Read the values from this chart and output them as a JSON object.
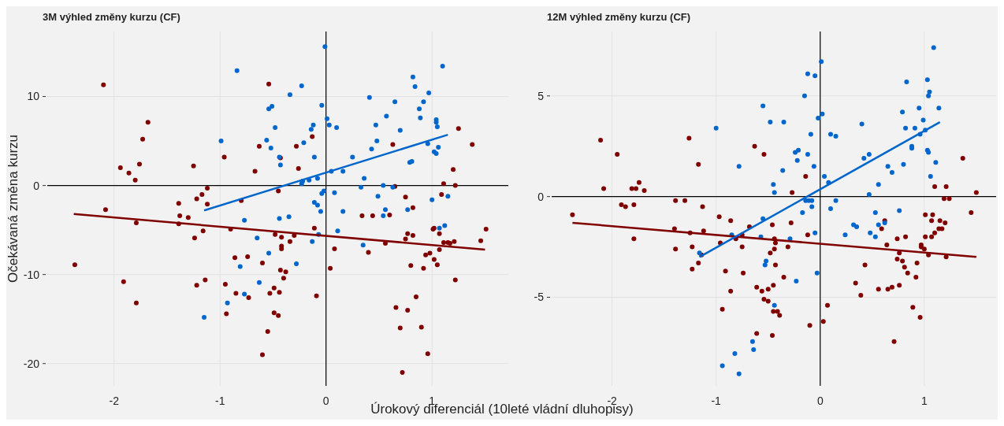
{
  "chart_data": [
    {
      "type": "scatter",
      "title": "3M výhled změny kurzu (CF)",
      "xlabel": "Úrokový diferenciál (10leté vládní dluhopisy)",
      "ylabel": "Očekávaná změna kurzu",
      "xlim": [
        -2.63,
        1.72
      ],
      "ylim": [
        -22.5,
        17.3
      ],
      "xticks": [
        -2,
        -1,
        0,
        1
      ],
      "yticks": [
        -20,
        -10,
        0,
        10
      ],
      "grid": true,
      "marker": "circle",
      "series": [
        {
          "type": "scatter",
          "color": "#800000",
          "x": [
            -2.1,
            -1.68,
            -1.73,
            -1.94,
            -1.86,
            -1.76,
            -1.8,
            -1.25,
            -0.96,
            -0.54,
            -0.63,
            -0.67,
            -0.43,
            -0.45,
            -2.08,
            -1.79,
            -1.12,
            -1.17,
            -1.22,
            -1.12,
            -1.39,
            -1.38,
            -1.3,
            -1.39,
            -1.24,
            -1.16,
            -0.9,
            -0.8,
            -0.86,
            -0.74,
            -0.6,
            -0.48,
            -0.42,
            -0.42,
            -0.43,
            -2.37,
            -1.91,
            -1.79,
            -1.22,
            -1.14,
            -0.95,
            -0.85,
            -0.73,
            -0.94,
            -0.53,
            -0.49,
            -0.44,
            -0.49,
            -0.45,
            -0.55,
            -0.6,
            -0.28,
            -0.26,
            -0.13,
            -0.11,
            -0.3,
            -0.34,
            -0.42,
            -0.38,
            -0.4,
            -0.09,
            0.08,
            0.04,
            0.34,
            0.44,
            0.6,
            0.4,
            0.56,
            0.63,
            0.65,
            0.75,
            0.82,
            0.77,
            0.82,
            0.75,
            0.8,
            0.92,
            0.94,
            0.98,
            1.02,
            1.05,
            1.07,
            1.01,
            1.02,
            1.07,
            1.11,
            1.15,
            1.17,
            1.21,
            1.09,
            1.11,
            1.22,
            1.2,
            1.25,
            1.38,
            1.46,
            1.51,
            1.22,
            0.85,
            0.66,
            0.77,
            0.7,
            0.9,
            0.96,
            0.72
          ],
          "values": [
            11.3,
            7.1,
            5.2,
            2.0,
            1.4,
            2.4,
            0.6,
            2.2,
            3.2,
            11.4,
            4.4,
            1.6,
            3.1,
            -0.6,
            -2.7,
            -4.2,
            -0.3,
            -1.0,
            -1.5,
            -2.1,
            -2.0,
            -3.4,
            -3.6,
            -4.3,
            -5.9,
            -5.1,
            -4.9,
            -1.7,
            -8.1,
            -8.0,
            -8.7,
            -5.5,
            -5.8,
            -7.1,
            -9.5,
            -8.9,
            -10.8,
            -13.2,
            -11.2,
            -10.6,
            -11.1,
            -12.1,
            -12.6,
            -14.4,
            -12.1,
            -11.5,
            -12.0,
            -14.3,
            -14.6,
            -16.4,
            -19.0,
            4.4,
            1.9,
            5.5,
            -4.8,
            -5.6,
            -6.3,
            -6.8,
            -9.7,
            -10.4,
            -12.4,
            -7.1,
            -9.3,
            -3.4,
            -3.4,
            -3.3,
            -7.5,
            -6.5,
            4.6,
            -0.1,
            -1.3,
            -2.5,
            -5.4,
            -5.6,
            -6.0,
            -9.0,
            -9.3,
            -7.8,
            -7.6,
            -8.3,
            -8.9,
            -7.2,
            -4.9,
            -4.8,
            -5.4,
            -6.4,
            -6.4,
            -6.5,
            -6.3,
            -1.0,
            0.2,
            0.0,
            1.8,
            6.4,
            4.6,
            -6.2,
            -4.9,
            -10.6,
            -12.5,
            -13.7,
            -14.0,
            -16.0,
            -15.9,
            -18.9,
            -21.0
          ]
        },
        {
          "type": "scatter",
          "color": "#0066cc",
          "x": [
            -0.84,
            -0.54,
            -0.51,
            -0.48,
            -0.99,
            -0.56,
            -0.52,
            -0.44,
            -0.43,
            -0.77,
            -0.44,
            -0.65,
            -0.54,
            -0.81,
            -0.63,
            -0.77,
            -0.93,
            -1.15,
            -0.01,
            1.1,
            0.82,
            0.84,
            0.97,
            0.92,
            0.88,
            0.89,
            0.65,
            0.41,
            0.57,
            0.47,
            0.7,
            0.48,
            0.43,
            1.04,
            1.04,
            1.05,
            0.96,
            1.06,
            1.02,
            1.04,
            0.79,
            0.81,
            -0.34,
            -0.23,
            -0.04,
            0.01,
            0.03,
            0.1,
            -0.12,
            -0.14,
            -0.21,
            -0.11,
            0.25,
            0.16,
            0.05,
            -0.08,
            -0.16,
            -0.22,
            -0.23,
            0.36,
            0.33,
            0.54,
            0.63,
            -0.02,
            -0.04,
            0.08,
            -0.11,
            -0.08,
            -0.05,
            0.16,
            0.49,
            0.56,
            0.54,
            0.77,
            1.0,
            1.15,
            1.07,
            1.12,
            0.11,
            -0.07,
            -0.13,
            0.35,
            -0.35,
            -0.28
          ],
          "values": [
            12.9,
            8.6,
            8.9,
            6.5,
            5.0,
            5.1,
            4.2,
            3.2,
            2.3,
            -3.9,
            -3.7,
            -5.9,
            -7.6,
            -9.1,
            -10.9,
            -12.2,
            -13.2,
            -14.8,
            15.6,
            13.4,
            12.2,
            11.1,
            10.4,
            9.4,
            8.6,
            7.6,
            9.4,
            9.9,
            7.8,
            6.8,
            6.2,
            5.0,
            4.1,
            7.4,
            7.1,
            6.6,
            4.7,
            4.3,
            3.8,
            3.6,
            2.6,
            2.7,
            10.2,
            11.2,
            9.0,
            7.5,
            6.8,
            6.5,
            6.8,
            6.3,
            4.8,
            3.2,
            3.2,
            1.6,
            1.6,
            0.8,
            0.6,
            0.5,
            0.2,
            0.8,
            -0.2,
            0.0,
            -0.2,
            -0.6,
            -0.9,
            -0.8,
            -1.9,
            -2.2,
            -2.9,
            -2.9,
            -1.2,
            -2.7,
            -3.4,
            -2.7,
            -1.6,
            -1.2,
            -4.8,
            -4.5,
            -5.1,
            -5.5,
            -6.3,
            -6.7,
            -3.5,
            -8.8
          ]
        },
        {
          "type": "line",
          "marker": "none",
          "color": "#800000",
          "x": [
            -2.38,
            1.5
          ],
          "values": [
            -3.2,
            -7.2
          ]
        },
        {
          "type": "line",
          "marker": "none",
          "color": "#0066cc",
          "x": [
            -1.15,
            1.15
          ],
          "values": [
            -2.8,
            5.7
          ]
        }
      ]
    },
    {
      "type": "scatter",
      "title": "12M výhled změny kurzu (CF)",
      "xlim": [
        -2.58,
        1.69
      ],
      "ylim": [
        -9.4,
        8.2
      ],
      "xticks": [
        -2,
        -1,
        0,
        1
      ],
      "yticks": [
        -5,
        0,
        5
      ],
      "grid": true,
      "marker": "circle",
      "series": [
        {
          "type": "scatter",
          "color": "#800000",
          "x": [
            -2.11,
            -1.95,
            -2.08,
            -2.38,
            -1.91,
            -1.87,
            -1.79,
            -1.81,
            -1.77,
            -1.74,
            -1.69,
            -1.79,
            -1.26,
            -1.17,
            -1.39,
            -1.3,
            -1.13,
            -1.4,
            -1.25,
            -1.12,
            -1.39,
            -1.23,
            -1.14,
            -1.17,
            -1.23,
            -0.97,
            -0.86,
            -0.96,
            -0.81,
            -0.75,
            -0.75,
            -0.68,
            -0.63,
            -0.54,
            -0.46,
            -0.91,
            -0.74,
            -0.86,
            -0.94,
            -0.61,
            -0.56,
            -0.5,
            -0.54,
            -0.5,
            -0.45,
            -0.48,
            -0.44,
            -0.43,
            -0.61,
            -0.46,
            -0.45,
            -0.44,
            -0.14,
            -0.27,
            -0.28,
            -0.43,
            -0.31,
            -0.12,
            -0.35,
            -0.41,
            -0.39,
            -0.1,
            0.03,
            0.07,
            0.43,
            0.34,
            0.39,
            0.56,
            0.65,
            0.69,
            0.76,
            0.62,
            0.59,
            0.64,
            0.74,
            0.82,
            0.76,
            0.74,
            0.79,
            0.81,
            0.84,
            0.92,
            0.93,
            0.97,
            0.97,
            1.0,
            1.04,
            1.01,
            1.07,
            1.1,
            1.14,
            1.17,
            1.15,
            1.2,
            1.07,
            1.01,
            1.08,
            1.21,
            1.1,
            1.21,
            1.19,
            1.24,
            1.37,
            1.5,
            1.45,
            0.89,
            0.96,
            0.71
          ],
          "values": [
            2.8,
            2.1,
            0.4,
            -0.9,
            -0.4,
            -0.5,
            -0.4,
            0.4,
            0.4,
            0.7,
            0.3,
            -2.1,
            2.9,
            1.6,
            -0.2,
            -0.2,
            -0.5,
            -1.6,
            -1.8,
            -1.7,
            -2.6,
            -2.5,
            -2.9,
            -3.3,
            -3.6,
            -1.0,
            -1.2,
            -2.3,
            -2.1,
            -1.9,
            -2.5,
            -1.5,
            2.5,
            2.1,
            -1.4,
            -3.7,
            -3.8,
            -4.7,
            -5.6,
            -4.5,
            -4.7,
            -4.6,
            -5.1,
            -5.2,
            -4.4,
            -2.8,
            -2.6,
            -3.4,
            -6.8,
            -6.9,
            -5.7,
            -2.1,
            1.0,
            0.2,
            -1.3,
            -2.3,
            -2.5,
            -1.9,
            -4.0,
            -5.7,
            -5.9,
            -6.4,
            -6.2,
            -5.4,
            -3.4,
            -4.3,
            -4.9,
            -4.6,
            -4.6,
            -4.5,
            -4.4,
            -1.2,
            -1.6,
            -2.4,
            -2.1,
            -2.0,
            -2.8,
            -3.1,
            -3.2,
            -3.5,
            -3.8,
            -4.0,
            -3.3,
            -2.4,
            -2.5,
            -2.6,
            -2.9,
            -2.0,
            -2.0,
            -1.8,
            -1.6,
            -1.6,
            -1.2,
            -1.3,
            -1.2,
            -0.9,
            -0.9,
            -3.0,
            0.5,
            0.5,
            -0.1,
            -0.1,
            1.9,
            0.2,
            -0.8,
            -5.5,
            -6.0,
            -7.2
          ]
        },
        {
          "type": "scatter",
          "color": "#0066cc",
          "x": [
            -0.55,
            -0.48,
            -1.0,
            -0.78,
            -0.45,
            -0.44,
            -0.55,
            -0.85,
            -0.57,
            -1.16,
            -0.52,
            -0.53,
            -0.44,
            -0.65,
            -0.64,
            -0.82,
            -0.94,
            -0.78,
            1.09,
            0.01,
            -0.12,
            -0.05,
            -0.15,
            0.02,
            -0.02,
            -0.09,
            -0.35,
            0.1,
            0.15,
            -0.24,
            -0.21,
            -0.12,
            -0.22,
            -0.06,
            -0.36,
            0.04,
            0.08,
            -0.14,
            -0.11,
            -0.08,
            -0.08,
            -0.17,
            0.15,
            0.1,
            -0.29,
            -0.05,
            -0.23,
            -0.03,
            0.4,
            0.42,
            0.47,
            0.56,
            0.47,
            0.65,
            0.69,
            0.8,
            0.79,
            0.83,
            0.82,
            0.91,
            0.88,
            0.88,
            0.95,
            0.99,
            0.96,
            1.01,
            1.03,
            1.05,
            1.04,
            1.14,
            1.03,
            1.04,
            1.11,
            1.06,
            0.53,
            0.56,
            0.62,
            0.76,
            0.32,
            0.35,
            0.24,
            0.48,
            0.53
          ],
          "values": [
            4.5,
            3.7,
            3.4,
            1.5,
            0.6,
            0.2,
            -1.1,
            -1.9,
            -2.0,
            -2.8,
            -3.2,
            -3.4,
            -5.4,
            -7.2,
            -7.6,
            -7.8,
            -8.4,
            -8.8,
            7.4,
            6.7,
            6.1,
            6.0,
            5.0,
            4.1,
            3.9,
            3.1,
            3.7,
            3.1,
            3.0,
            2.2,
            2.3,
            2.1,
            1.8,
            1.5,
            1.3,
            1.0,
            0.7,
            -0.2,
            -0.2,
            -0.2,
            -0.5,
            -0.8,
            -0.2,
            -0.6,
            -2.1,
            -1.8,
            -4.2,
            -3.8,
            3.6,
            1.9,
            2.1,
            0.6,
            0.1,
            1.5,
            1.2,
            1.6,
            4.2,
            5.7,
            3.4,
            3.4,
            2.5,
            2.4,
            4.4,
            3.8,
            3.1,
            3.3,
            5.8,
            5.2,
            5.0,
            4.4,
            2.3,
            2.2,
            1.7,
            1.0,
            -0.8,
            -1.4,
            -1.3,
            -0.7,
            -1.4,
            -1.5,
            -1.9,
            -1.8,
            -2.0
          ]
        },
        {
          "type": "line",
          "marker": "none",
          "color": "#800000",
          "x": [
            -2.38,
            1.5
          ],
          "values": [
            -1.3,
            -3.0
          ]
        },
        {
          "type": "line",
          "marker": "none",
          "color": "#0066cc",
          "x": [
            -1.16,
            1.15
          ],
          "values": [
            -3.0,
            3.7
          ]
        }
      ]
    }
  ]
}
